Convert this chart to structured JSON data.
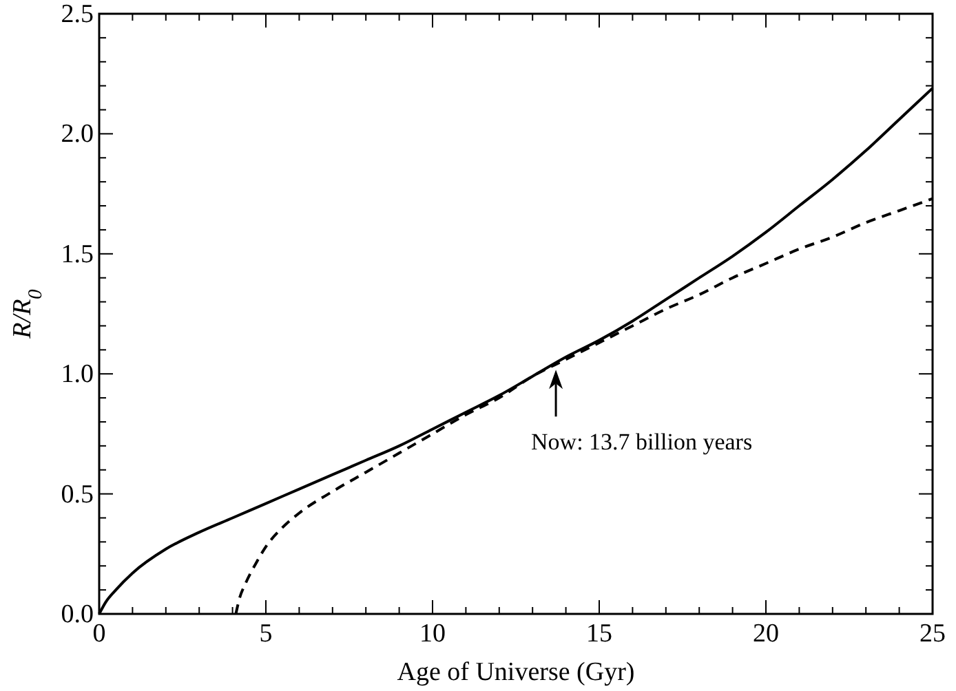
{
  "chart_data": {
    "type": "line",
    "xlabel": "Age of Universe (Gyr)",
    "ylabel": "R/R$_{0}$",
    "xlim": [
      0,
      25
    ],
    "ylim": [
      0,
      2.5
    ],
    "xticks": [
      0,
      {
        "value": 1,
        "label": null
      },
      {
        "value": 2,
        "label": null
      },
      {
        "value": 3,
        "label": null
      },
      {
        "value": 4,
        "label": null
      },
      5,
      {
        "value": 6,
        "label": null
      },
      {
        "value": 7,
        "label": null
      },
      {
        "value": 8,
        "label": null
      },
      {
        "value": 9,
        "label": null
      },
      10,
      {
        "value": 11,
        "label": null
      },
      {
        "value": 12,
        "label": null
      },
      {
        "value": 13,
        "label": null
      },
      {
        "value": 14,
        "label": null
      },
      15,
      {
        "value": 16,
        "label": null
      },
      {
        "value": 17,
        "label": null
      },
      {
        "value": 18,
        "label": null
      },
      {
        "value": 19,
        "label": null
      },
      20,
      {
        "value": 21,
        "label": null
      },
      {
        "value": 22,
        "label": null
      },
      {
        "value": 23,
        "label": null
      },
      {
        "value": 24,
        "label": null
      },
      25
    ],
    "yticks": [
      {
        "value": 0,
        "label": "0.0"
      },
      {
        "value": 0.1,
        "label": null
      },
      {
        "value": 0.2,
        "label": null
      },
      {
        "value": 0.3,
        "label": null
      },
      {
        "value": 0.4,
        "label": null
      },
      0.5,
      {
        "value": 0.6,
        "label": null
      },
      {
        "value": 0.7,
        "label": null
      },
      {
        "value": 0.8,
        "label": null
      },
      {
        "value": 0.9,
        "label": null
      },
      {
        "value": 1,
        "label": "1.0"
      },
      {
        "value": 1.1,
        "label": null
      },
      {
        "value": 1.2,
        "label": null
      },
      {
        "value": 1.3,
        "label": null
      },
      {
        "value": 1.4,
        "label": null
      },
      1.5,
      {
        "value": 1.6,
        "label": null
      },
      {
        "value": 1.7,
        "label": null
      },
      {
        "value": 1.8,
        "label": null
      },
      {
        "value": 1.9,
        "label": null
      },
      {
        "value": 2,
        "label": "2.0"
      },
      {
        "value": 2.1,
        "label": null
      },
      {
        "value": 2.2,
        "label": null
      },
      {
        "value": 2.3,
        "label": null
      },
      {
        "value": 2.4,
        "label": null
      },
      2.5
    ],
    "grid": false,
    "marker": "none",
    "series": [
      {
        "color": "#000000",
        "line_style": "solid",
        "x": [
          0,
          0.2,
          0.5,
          1,
          2,
          3,
          4,
          5,
          6,
          7,
          8,
          9,
          10,
          11,
          12,
          13,
          14,
          15,
          16,
          17,
          18,
          19,
          20,
          21,
          22,
          23,
          24,
          25
        ],
        "values": [
          0,
          0.05,
          0.1,
          0.17,
          0.27,
          0.34,
          0.4,
          0.46,
          0.52,
          0.58,
          0.64,
          0.7,
          0.77,
          0.84,
          0.91,
          0.99,
          1.07,
          1.14,
          1.22,
          1.31,
          1.4,
          1.49,
          1.59,
          1.7,
          1.81,
          1.93,
          2.06,
          2.19
        ]
      },
      {
        "color": "#000000",
        "line_style": "dashed",
        "x": [
          4.1,
          4.2,
          4.4,
          4.7,
          5,
          5.5,
          6,
          7,
          8,
          9,
          10,
          11,
          12,
          13,
          14,
          15,
          16,
          17,
          18,
          19,
          20,
          21,
          22,
          23,
          24,
          25
        ],
        "values": [
          0,
          0.06,
          0.13,
          0.21,
          0.28,
          0.36,
          0.42,
          0.51,
          0.59,
          0.67,
          0.75,
          0.83,
          0.9,
          0.99,
          1.06,
          1.13,
          1.2,
          1.27,
          1.33,
          1.4,
          1.46,
          1.52,
          1.57,
          1.63,
          1.68,
          1.73
        ]
      }
    ],
    "annotations": [
      {
        "text": "Now: 13.7 billion years",
        "x": 13.7,
        "y": 1.04
      }
    ]
  }
}
